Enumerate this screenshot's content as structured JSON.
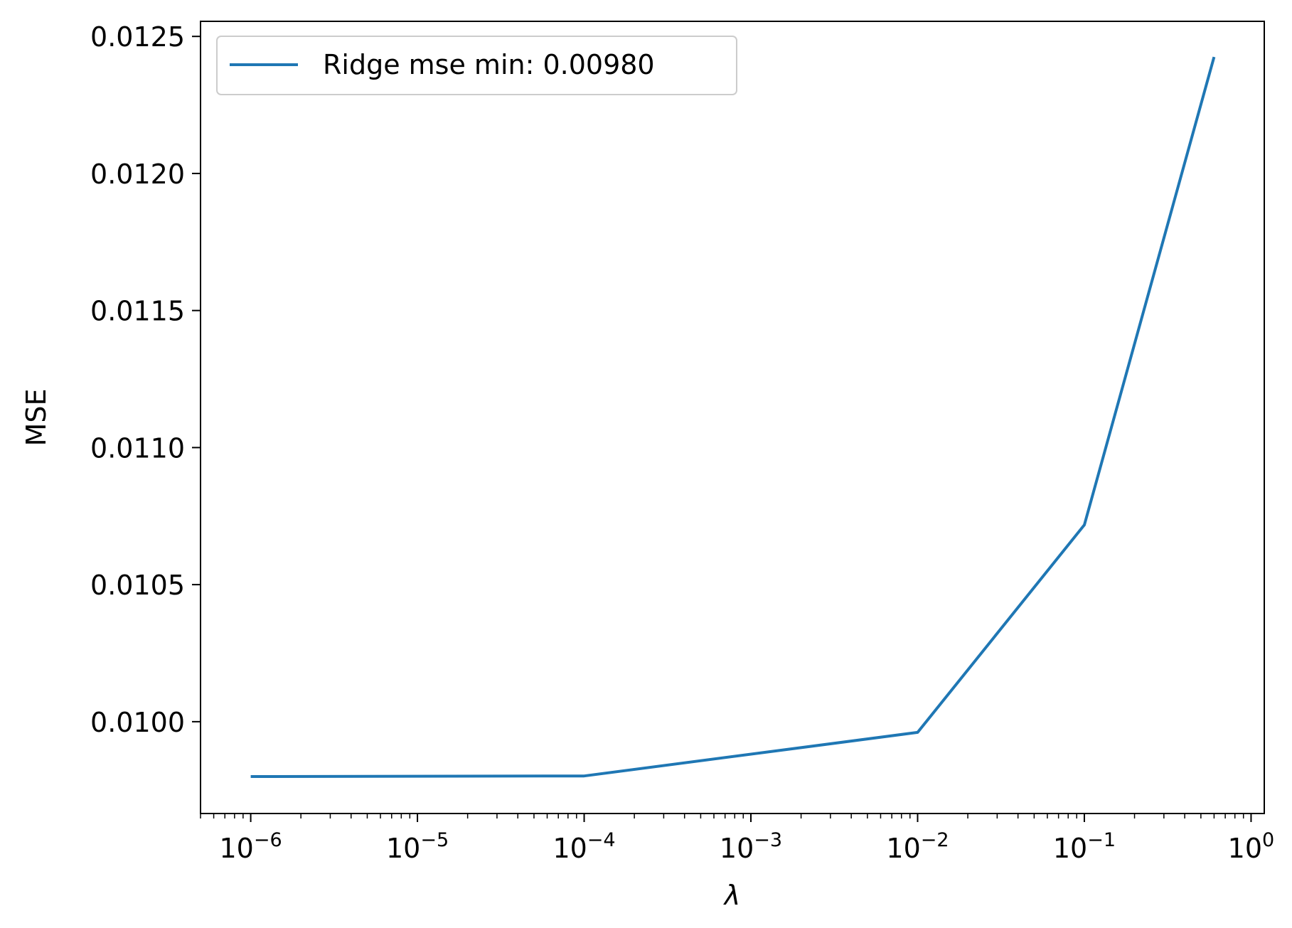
{
  "chart_data": {
    "type": "line",
    "xscale": "log",
    "xlabel": "λ",
    "ylabel": "MSE",
    "xlim": [
      5e-07,
      1.2
    ],
    "ylim": [
      0.009665,
      0.012555
    ],
    "x_ticks": [
      {
        "value": 1e-06,
        "base": "10",
        "exp": "−6"
      },
      {
        "value": 1e-05,
        "base": "10",
        "exp": "−5"
      },
      {
        "value": 0.0001,
        "base": "10",
        "exp": "−4"
      },
      {
        "value": 0.001,
        "base": "10",
        "exp": "−3"
      },
      {
        "value": 0.01,
        "base": "10",
        "exp": "−2"
      },
      {
        "value": 0.1,
        "base": "10",
        "exp": "−1"
      },
      {
        "value": 1,
        "base": "10",
        "exp": "0"
      }
    ],
    "y_ticks": [
      {
        "value": 0.01,
        "label": "0.0100"
      },
      {
        "value": 0.0105,
        "label": "0.0105"
      },
      {
        "value": 0.011,
        "label": "0.0110"
      },
      {
        "value": 0.0115,
        "label": "0.0115"
      },
      {
        "value": 0.012,
        "label": "0.0120"
      },
      {
        "value": 0.0125,
        "label": "0.0125"
      }
    ],
    "grid": false,
    "legend_position": "top-left",
    "series": [
      {
        "name": "Ridge mse min: 0.00980",
        "color": "#1f77b4",
        "x": [
          1e-06,
          0.0001,
          0.01,
          0.1,
          0.6
        ],
        "y": [
          0.0098,
          0.009802,
          0.009961,
          0.010718,
          0.012425
        ]
      }
    ]
  }
}
